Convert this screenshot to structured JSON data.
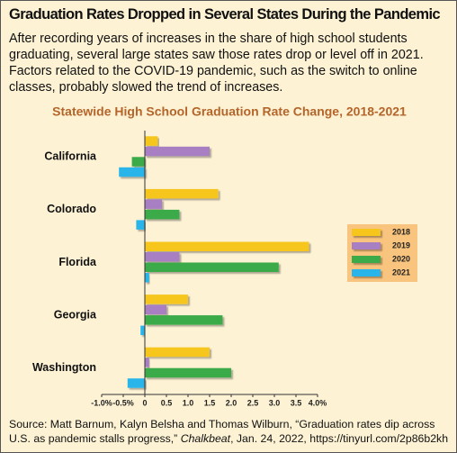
{
  "header": {
    "title": "Graduation Rates Dropped in Several States During the Pandemic",
    "description": "After recording years of increases in the share of high school students graduating, several large states saw those rates drop or level off in 2021. Factors related to the COVID-19 pandemic, such as the switch to online classes, probably slowed the trend of increases."
  },
  "chart_data": {
    "type": "bar",
    "orientation": "horizontal",
    "title": "Statewide High School Graduation Rate Change, 2018-2021",
    "categories": [
      "California",
      "Colorado",
      "Florida",
      "Georgia",
      "Washington"
    ],
    "series": [
      {
        "name": "2018",
        "color": "#f6c61e",
        "values": [
          0.3,
          1.7,
          3.8,
          1.0,
          1.5
        ]
      },
      {
        "name": "2019",
        "color": "#a97fc4",
        "values": [
          1.5,
          0.4,
          0.8,
          0.5,
          0.1
        ]
      },
      {
        "name": "2020",
        "color": "#3aaa48",
        "values": [
          -0.3,
          0.8,
          3.1,
          1.8,
          2.0
        ]
      },
      {
        "name": "2021",
        "color": "#2bb5ea",
        "values": [
          -0.6,
          -0.2,
          0.1,
          -0.1,
          -0.4
        ]
      }
    ],
    "xlim": [
      -1.0,
      4.0
    ],
    "xticks": [
      {
        "value": -1.0,
        "label": "-1.0%"
      },
      {
        "value": -0.5,
        "label": "-0.5%"
      },
      {
        "value": 0,
        "label": "0"
      },
      0.5,
      {
        "value": 1.0,
        "label": "1.0"
      },
      1.5,
      {
        "value": 2.0,
        "label": "2.0"
      },
      2.5,
      {
        "value": 3.0,
        "label": "3.0"
      },
      3.5,
      {
        "value": 4.0,
        "label": "4.0%"
      }
    ],
    "legend_position": "right"
  },
  "footer": {
    "source_before": "Source: Matt Barnum, Kalyn Belsha and Thomas Wilburn, “Graduation rates dip across U.S. as pandemic stalls progress,”",
    "source_publication": "Chalkbeat",
    "source_after": ", Jan. 24, 2022, https://tinyurl.com/2p86b2kh"
  }
}
